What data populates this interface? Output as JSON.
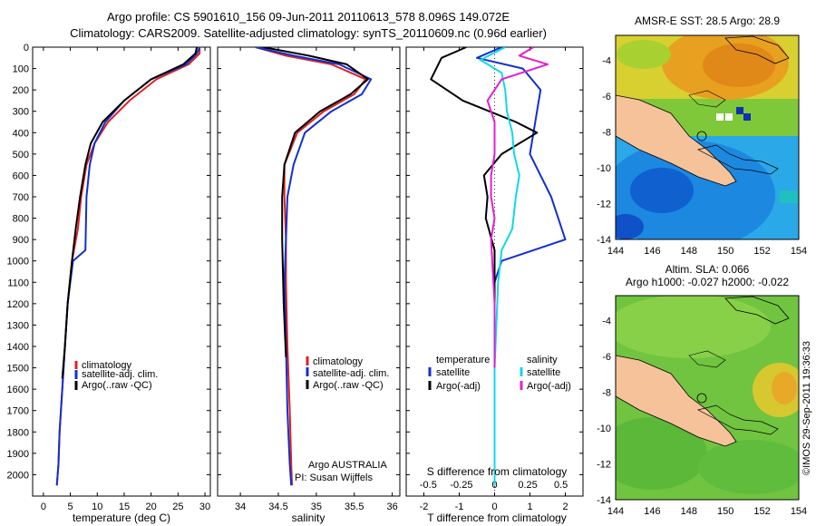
{
  "header": {
    "line1": "Argo profile: CS 5901610_156 09-Jun-2011 20110613_578 8.096S 149.072E",
    "line2": "Climatology: CARS2009. Satellite-adjusted climatology: synTS_20110609.nc (0.96d earlier)"
  },
  "footer": {
    "stamp": "©IMOS 29-Sep-2011 19:36:33",
    "argo_program": "Argo AUSTRALIA",
    "pi": "PI: Susan Wijffels"
  },
  "colors": {
    "climatology": "#e02020",
    "satellite": "#1030d0",
    "argo": "#000000",
    "sal_satellite": "#10d8e8",
    "sal_argo": "#e020d0",
    "land": "#f5c29a"
  },
  "chart_data": [
    {
      "type": "line",
      "panel": "temperature",
      "xlabel": "temperature (deg C)",
      "ylabel": "",
      "xlim": [
        -2,
        31
      ],
      "ylim": [
        2100,
        0
      ],
      "xticks": [
        0,
        5,
        10,
        15,
        20,
        25,
        30
      ],
      "yticks": [
        0,
        100,
        200,
        300,
        400,
        500,
        600,
        700,
        800,
        900,
        1000,
        1100,
        1200,
        1300,
        1400,
        1500,
        1600,
        1700,
        1800,
        1900,
        2000
      ],
      "legend": [
        "climatology",
        "satellite-adj. clim.",
        "Argo(..raw -QC)"
      ],
      "series": [
        {
          "name": "climatology",
          "x": [
            29,
            29,
            27,
            21,
            16,
            12,
            9.5,
            8,
            7,
            6.4,
            5.3,
            4.5,
            4,
            3.5,
            3,
            2.8,
            2.5
          ],
          "y": [
            0,
            30,
            80,
            150,
            250,
            350,
            450,
            550,
            700,
            850,
            1000,
            1200,
            1400,
            1600,
            1800,
            1950,
            2050
          ]
        },
        {
          "name": "satellite-adj. clim.",
          "x": [
            29,
            28.5,
            26.5,
            20,
            15,
            11.5,
            9.5,
            8.6,
            8,
            7.8,
            5.5,
            4.5,
            4,
            3.5,
            3,
            2.8,
            2.5
          ],
          "y": [
            0,
            30,
            80,
            150,
            250,
            350,
            450,
            550,
            700,
            950,
            1000,
            1200,
            1400,
            1600,
            1800,
            1950,
            2050
          ]
        },
        {
          "name": "Argo(..raw -QC)",
          "x": [
            28.5,
            28.2,
            26,
            20,
            15,
            11,
            8.8,
            7.8,
            6.8,
            6,
            5.3,
            4.5,
            4,
            3.5
          ],
          "y": [
            0,
            30,
            80,
            150,
            250,
            350,
            450,
            550,
            700,
            850,
            1000,
            1200,
            1400,
            1550
          ]
        }
      ]
    },
    {
      "type": "line",
      "panel": "salinity",
      "xlabel": "salinity",
      "xlim": [
        33.7,
        36.1
      ],
      "ylim": [
        2100,
        0
      ],
      "xticks": [
        34,
        34.5,
        35,
        35.5,
        36
      ],
      "legend": [
        "climatology",
        "satellite-adj. clim.",
        "Argo(..raw -QC)"
      ],
      "series": [
        {
          "name": "climatology",
          "x": [
            34.2,
            34.6,
            35.2,
            35.65,
            35.5,
            35.1,
            34.75,
            34.58,
            34.58,
            34.6,
            34.6,
            34.62,
            34.65,
            34.67,
            34.68
          ],
          "y": [
            0,
            40,
            80,
            150,
            220,
            300,
            400,
            550,
            700,
            900,
            1100,
            1400,
            1700,
            1950,
            2050
          ]
        },
        {
          "name": "satellite-adj. clim.",
          "x": [
            34.2,
            34.7,
            35.3,
            35.72,
            35.6,
            35.2,
            34.85,
            34.7,
            34.62,
            34.6,
            34.58,
            34.6,
            34.62,
            34.65,
            34.67
          ],
          "y": [
            0,
            40,
            80,
            150,
            220,
            300,
            400,
            550,
            700,
            900,
            1100,
            1400,
            1700,
            1950,
            2050
          ]
        },
        {
          "name": "Argo(..raw -QC)",
          "x": [
            34.3,
            34.9,
            35.4,
            35.68,
            35.45,
            35.05,
            34.72,
            34.58,
            34.55,
            34.55,
            34.57,
            34.6
          ],
          "y": [
            0,
            40,
            80,
            150,
            220,
            300,
            400,
            550,
            700,
            900,
            1200,
            1450
          ]
        }
      ]
    },
    {
      "type": "line",
      "panel": "difference",
      "xlabel_top": "S difference from climatology",
      "xlabel": "T difference from climatology",
      "xlim": [
        -2.5,
        2.5
      ],
      "ylim": [
        2100,
        0
      ],
      "xticks": [
        -2,
        -1,
        0,
        1,
        2
      ],
      "xtick_labels_top": [
        "-0.5",
        "-0.25",
        "0",
        "0.25",
        "0.5"
      ],
      "legend_headers": [
        "temperature",
        "salinity"
      ],
      "legend": [
        "satellite",
        "Argo(-adj)",
        "satellite",
        "Argo(-adj)"
      ],
      "series": [
        {
          "name": "satellite",
          "quantity": "temperature",
          "x": [
            0.2,
            -0.5,
            0.8,
            1.3,
            1.2,
            1.1,
            1.0,
            1.3,
            1.6,
            1.8,
            2.0,
            0.2,
            0,
            0,
            0
          ],
          "y": [
            0,
            50,
            100,
            200,
            300,
            400,
            500,
            600,
            700,
            800,
            900,
            1000,
            1100,
            1500,
            2050
          ]
        },
        {
          "name": "Argo(-adj)",
          "quantity": "temperature",
          "x": [
            -0.8,
            -1.5,
            -1.8,
            -0.9,
            0.6,
            1.2,
            0.2,
            -0.3,
            -0.2,
            -0.25,
            0,
            0,
            0
          ],
          "y": [
            0,
            50,
            150,
            250,
            350,
            400,
            500,
            600,
            700,
            800,
            950,
            1200,
            1550
          ]
        },
        {
          "name": "satellite",
          "quantity": "salinity",
          "x": [
            0.3,
            -0.4,
            0.2,
            0.3,
            0.35,
            0.5,
            0.55,
            0.7,
            0.6,
            0.5,
            0.2,
            0.1,
            0,
            0
          ],
          "y": [
            0,
            60,
            120,
            200,
            300,
            400,
            500,
            600,
            700,
            850,
            950,
            1100,
            1500,
            2050
          ]
        },
        {
          "name": "Argo(-adj)",
          "quantity": "salinity",
          "x": [
            1.1,
            0.7,
            1.5,
            0.2,
            -0.2,
            0,
            0,
            -0.1,
            -0.1,
            0,
            -0.1,
            0,
            0
          ],
          "y": [
            0,
            40,
            80,
            150,
            250,
            350,
            500,
            600,
            700,
            800,
            900,
            1200,
            1500
          ]
        }
      ]
    },
    {
      "type": "heatmap",
      "panel": "map-sst",
      "title": "AMSR-E SST: 28.5 Argo: 28.9",
      "xlim": [
        144,
        154
      ],
      "ylim": [
        -14,
        -2.6
      ],
      "xticks": [
        144,
        146,
        148,
        150,
        152,
        154
      ],
      "yticks": [
        -4,
        -6,
        -8,
        -10,
        -12,
        -14
      ]
    },
    {
      "type": "heatmap",
      "panel": "map-sla",
      "title_line1": "Altim. SLA: 0.066",
      "title_line2": "Argo h1000: -0.027 h2000: -0.022",
      "xlim": [
        144,
        154
      ],
      "ylim": [
        -14,
        -2.6
      ],
      "xticks": [
        144,
        146,
        148,
        150,
        152,
        154
      ],
      "yticks": [
        -4,
        -6,
        -8,
        -10,
        -12,
        -14
      ]
    }
  ]
}
